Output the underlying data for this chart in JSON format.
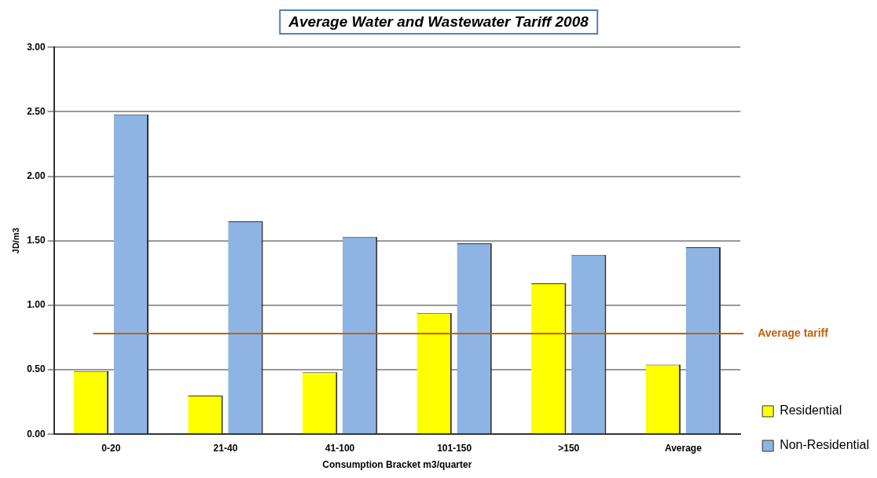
{
  "chart_data": {
    "type": "bar",
    "title": "Average Water and Wastewater Tariff 2008",
    "xlabel": "Consumption Bracket m3/quarter",
    "ylabel": "JD/m3",
    "categories": [
      "0-20",
      "21-40",
      "41-100",
      "101-150",
      ">150",
      "Average"
    ],
    "series": [
      {
        "name": "Residential",
        "color": "#ffff00",
        "values": [
          0.49,
          0.3,
          0.48,
          0.94,
          1.17,
          0.54
        ]
      },
      {
        "name": "Non-Residential",
        "color": "#8db4e2",
        "values": [
          2.48,
          1.65,
          1.53,
          1.48,
          1.39,
          1.45
        ]
      }
    ],
    "ylim": [
      0,
      3
    ],
    "yticks": [
      {
        "value": 0,
        "label": "0.00"
      },
      {
        "value": 0.5,
        "label": "0.50"
      },
      {
        "value": 1,
        "label": "1.00"
      },
      {
        "value": 1.5,
        "label": "1.50"
      },
      {
        "value": 2,
        "label": "2.00"
      },
      {
        "value": 2.5,
        "label": "2.50"
      },
      {
        "value": 3,
        "label": "3.00"
      }
    ],
    "grid": "y",
    "legend": "bottom right",
    "ref_lines": [
      {
        "axis": "y",
        "value": 0.78,
        "label": "Average tariff",
        "color": "#c0600c"
      }
    ]
  }
}
